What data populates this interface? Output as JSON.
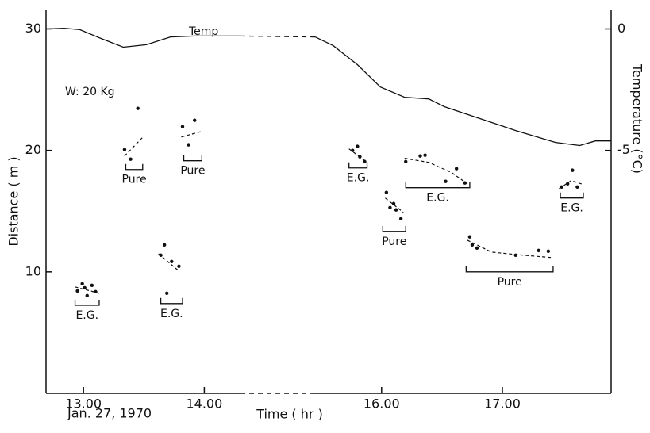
{
  "chart_data": {
    "type": "scatter",
    "xlabel": "Time ( hr )",
    "ylabel": "Distance ( m )",
    "y2label": "Temperature (°C)",
    "date_label": "Jan. 27, 1970",
    "annotation": "W: 20 Kg",
    "xlim": [
      12.69,
      17.9
    ],
    "xbreak": [
      14.3,
      15.45
    ],
    "xticks": [
      {
        "value": 13,
        "label": "13.00"
      },
      {
        "value": 14,
        "label": "14.00"
      },
      {
        "value": 16,
        "label": "16.00"
      },
      {
        "value": 17,
        "label": "17.00"
      }
    ],
    "ylim": [
      0,
      31.6
    ],
    "yticks": [
      10,
      20,
      30
    ],
    "y2lim": [
      -15,
      0.8
    ],
    "y2ticks": [
      0,
      -5
    ],
    "color": "#111111",
    "series": [
      {
        "name": "Temp",
        "axis": "y2",
        "color": "#111111",
        "x": [
          12.69,
          12.84,
          12.97,
          13.16,
          13.33,
          13.52,
          13.72,
          13.92,
          14.3,
          15.45,
          15.6,
          15.8,
          15.99,
          16.19,
          16.39,
          16.52,
          16.78,
          17.11,
          17.44,
          17.64,
          17.77,
          17.9
        ],
        "values": [
          0,
          0.03,
          -0.03,
          -0.42,
          -0.75,
          -0.65,
          -0.33,
          -0.29,
          -0.29,
          -0.33,
          -0.69,
          -1.47,
          -2.39,
          -2.81,
          -2.88,
          -3.2,
          -3.63,
          -4.18,
          -4.67,
          -4.8,
          -4.61,
          -4.61
        ]
      }
    ],
    "groups": [
      {
        "label": "E.G.",
        "x": [
          12.95,
          12.99,
          13.01,
          13.03,
          13.07,
          13.1
        ],
        "y": [
          8.43,
          9.02,
          8.69,
          8.04,
          8.89,
          8.37
        ],
        "fit_x": [
          12.93,
          13.13
        ],
        "fit_y": [
          8.76,
          8.24
        ],
        "bracket": [
          12.93,
          13.13
        ],
        "bracket_y": 7.25
      },
      {
        "label": "Pure",
        "x": [
          13.34,
          13.39,
          13.45
        ],
        "y": [
          20.07,
          19.28,
          23.46
        ],
        "fit_x": [
          13.34,
          13.5
        ],
        "fit_y": [
          19.54,
          21.18
        ],
        "bracket": [
          13.35,
          13.49
        ],
        "bracket_y": 18.43
      },
      {
        "label": "E.G.",
        "x": [
          13.64,
          13.67,
          13.69,
          13.73,
          13.79
        ],
        "y": [
          11.37,
          12.22,
          8.24,
          10.85,
          10.46
        ],
        "fit_x": [
          13.62,
          13.79
        ],
        "fit_y": [
          11.5,
          10.07
        ],
        "bracket": [
          13.64,
          13.82
        ],
        "bracket_y": 7.39
      },
      {
        "label": "Pure",
        "x": [
          13.82,
          13.87,
          13.92
        ],
        "y": [
          21.96,
          20.46,
          22.48
        ],
        "fit_x": [
          13.81,
          13.98
        ],
        "fit_y": [
          21.11,
          21.57
        ],
        "bracket": [
          13.83,
          13.98
        ],
        "bracket_y": 19.15
      },
      {
        "label": "E.G.",
        "x": [
          15.76,
          15.8,
          15.82,
          15.86
        ],
        "y": [
          20,
          20.33,
          19.48,
          19.08
        ],
        "fit_x": [
          15.73,
          15.88
        ],
        "fit_y": [
          20.13,
          19.02
        ],
        "bracket": [
          15.73,
          15.88
        ],
        "bracket_y": 18.56
      },
      {
        "label": "Pure",
        "x": [
          16.04,
          16.07,
          16.1,
          16.12,
          16.16
        ],
        "y": [
          16.54,
          15.29,
          15.62,
          15.1,
          14.38
        ],
        "fit_x": [
          16.03,
          16.18
        ],
        "fit_y": [
          16.08,
          14.9
        ],
        "bracket": [
          16.01,
          16.2
        ],
        "bracket_y": 13.33
      },
      {
        "label": "E.G.",
        "x": [
          16.2,
          16.32,
          16.36,
          16.53,
          16.62,
          16.69
        ],
        "y": [
          19.08,
          19.54,
          19.61,
          17.45,
          18.5,
          17.32
        ],
        "fit_x": [
          16.19,
          16.39,
          16.58,
          16.71
        ],
        "fit_y": [
          19.35,
          19.02,
          18.17,
          17.25
        ],
        "bracket": [
          16.2,
          16.73
        ],
        "bracket_y": 16.93
      },
      {
        "label": "Pure",
        "x": [
          16.73,
          16.75,
          16.79,
          17.11,
          17.3,
          17.38
        ],
        "y": [
          12.88,
          12.22,
          11.96,
          11.37,
          11.76,
          11.7
        ],
        "fit_x": [
          16.71,
          16.91,
          17.18,
          17.41
        ],
        "fit_y": [
          12.61,
          11.63,
          11.37,
          11.18
        ],
        "bracket": [
          16.7,
          17.42
        ],
        "bracket_y": 10
      },
      {
        "label": "E.G.",
        "x": [
          17.49,
          17.54,
          17.58,
          17.62
        ],
        "y": [
          16.99,
          17.25,
          18.37,
          16.99
        ],
        "fit_x": [
          17.47,
          17.57,
          17.67
        ],
        "fit_y": [
          16.86,
          17.52,
          17.19
        ],
        "bracket": [
          17.48,
          17.67
        ],
        "bracket_y": 16.08
      }
    ]
  }
}
